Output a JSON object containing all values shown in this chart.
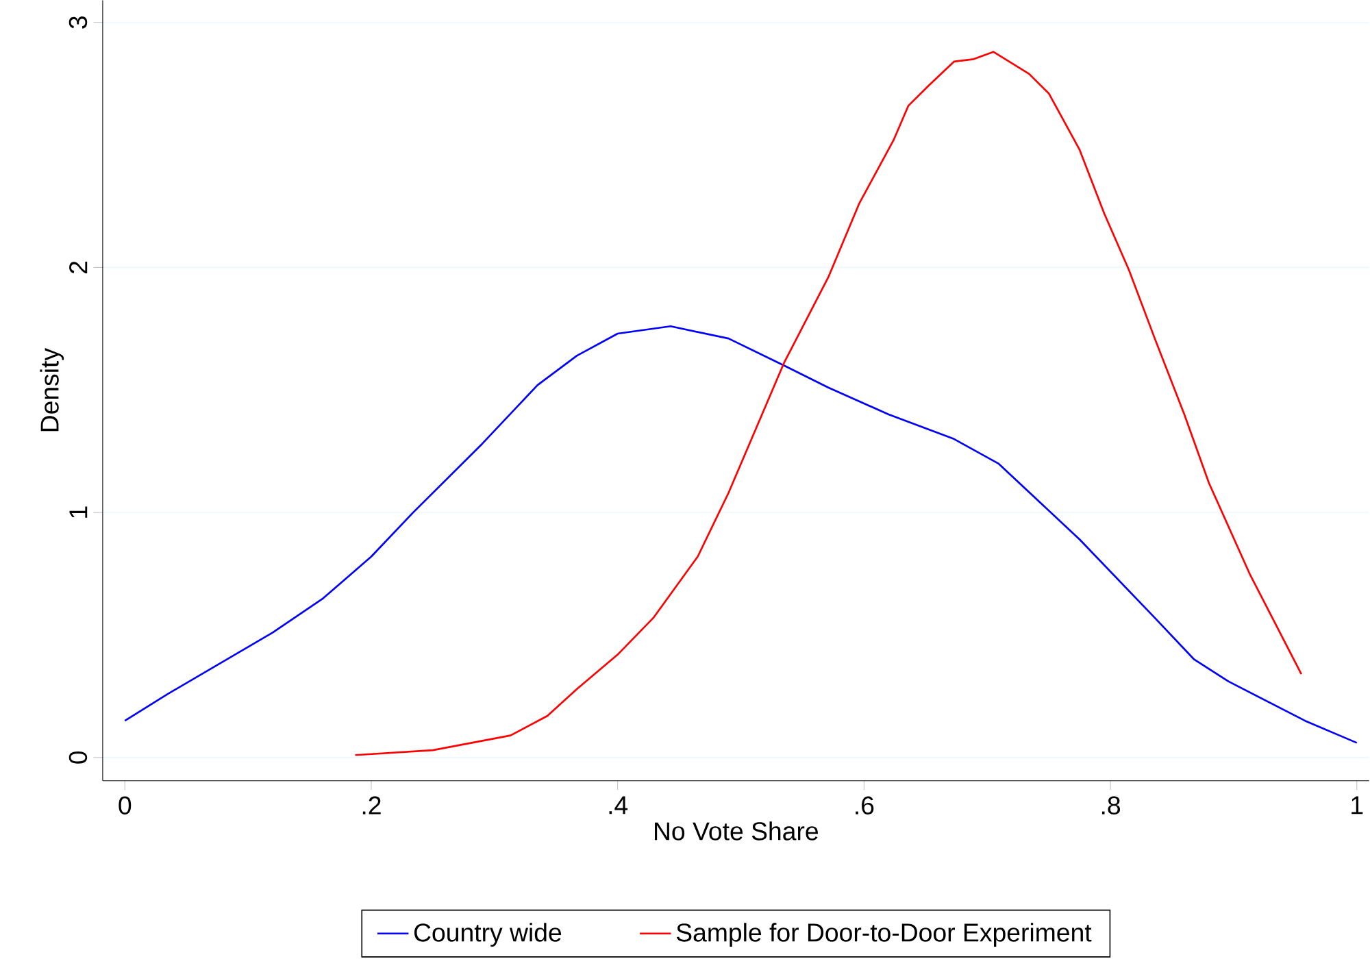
{
  "chart_data": {
    "type": "line",
    "xlabel": "No Vote Share",
    "ylabel": "Density",
    "xlim": [
      -0.018,
      1.01
    ],
    "ylim": [
      -0.095,
      3.09
    ],
    "xticks": [
      {
        "value": 0,
        "label": "0"
      },
      {
        "value": 0.2,
        "label": ".2"
      },
      {
        "value": 0.4,
        "label": ".4"
      },
      {
        "value": 0.6,
        "label": ".6"
      },
      {
        "value": 0.8,
        "label": ".8"
      },
      {
        "value": 1,
        "label": "1"
      }
    ],
    "yticks": [
      0,
      1,
      2,
      3
    ],
    "grid": "y",
    "legend": "bottom",
    "series": [
      {
        "name": "Country wide",
        "color": "#0000ff",
        "x": [
          0,
          0.035,
          0.12,
          0.161,
          0.2,
          0.234,
          0.29,
          0.335,
          0.367,
          0.4,
          0.443,
          0.49,
          0.535,
          0.571,
          0.62,
          0.673,
          0.709,
          0.775,
          0.836,
          0.868,
          0.896,
          0.958,
          1.0
        ],
        "values": [
          0.15,
          0.26,
          0.51,
          0.65,
          0.82,
          1.0,
          1.28,
          1.52,
          1.64,
          1.73,
          1.76,
          1.71,
          1.6,
          1.51,
          1.4,
          1.3,
          1.2,
          0.89,
          0.57,
          0.4,
          0.31,
          0.15,
          0.06
        ]
      },
      {
        "name": "Sample for Door-to-Door Experiment",
        "color": "#ff0000",
        "x": [
          0.187,
          0.25,
          0.313,
          0.343,
          0.367,
          0.4,
          0.429,
          0.465,
          0.49,
          0.535,
          0.571,
          0.596,
          0.624,
          0.636,
          0.652,
          0.673,
          0.689,
          0.705,
          0.734,
          0.75,
          0.775,
          0.795,
          0.815,
          0.836,
          0.86,
          0.88,
          0.913,
          0.955
        ],
        "values": [
          0.01,
          0.03,
          0.09,
          0.17,
          0.28,
          0.42,
          0.57,
          0.82,
          1.08,
          1.61,
          1.96,
          2.26,
          2.52,
          2.66,
          2.74,
          2.84,
          2.85,
          2.88,
          2.79,
          2.71,
          2.48,
          2.22,
          1.99,
          1.71,
          1.4,
          1.12,
          0.75,
          0.34
        ]
      }
    ]
  }
}
